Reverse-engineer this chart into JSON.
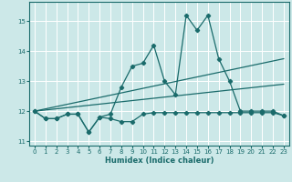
{
  "xlabel": "Humidex (Indice chaleur)",
  "background_color": "#cce8e8",
  "grid_color": "#ffffff",
  "line_color": "#1a6b6b",
  "xlim": [
    -0.5,
    23.5
  ],
  "ylim": [
    10.85,
    15.65
  ],
  "yticks": [
    11,
    12,
    13,
    14,
    15
  ],
  "xticks": [
    0,
    1,
    2,
    3,
    4,
    5,
    6,
    7,
    8,
    9,
    10,
    11,
    12,
    13,
    14,
    15,
    16,
    17,
    18,
    19,
    20,
    21,
    22,
    23
  ],
  "series1_x": [
    0,
    1,
    2,
    3,
    4,
    5,
    6,
    7,
    8,
    9,
    10,
    11,
    12,
    13,
    14,
    15,
    16,
    17,
    18,
    19,
    20,
    21,
    22,
    23
  ],
  "series1_y": [
    12.0,
    11.75,
    11.75,
    11.9,
    11.9,
    11.3,
    11.8,
    11.75,
    11.65,
    11.65,
    11.9,
    11.95,
    11.95,
    11.95,
    11.95,
    11.95,
    11.95,
    11.95,
    11.95,
    11.95,
    11.95,
    11.95,
    11.95,
    11.85
  ],
  "series2_x": [
    0,
    1,
    2,
    3,
    4,
    5,
    6,
    7,
    8,
    9,
    10,
    11,
    12,
    13,
    14,
    15,
    16,
    17,
    18,
    19,
    20,
    21,
    22,
    23
  ],
  "series2_y": [
    12.0,
    11.75,
    11.75,
    11.9,
    11.9,
    11.3,
    11.8,
    11.9,
    12.8,
    13.5,
    13.6,
    14.2,
    13.0,
    12.55,
    15.2,
    14.7,
    15.2,
    13.75,
    13.0,
    12.0,
    12.0,
    12.0,
    12.0,
    11.85
  ],
  "series3_x": [
    0,
    23
  ],
  "series3_y": [
    12.0,
    13.75
  ],
  "series4_x": [
    0,
    23
  ],
  "series4_y": [
    12.0,
    12.9
  ]
}
